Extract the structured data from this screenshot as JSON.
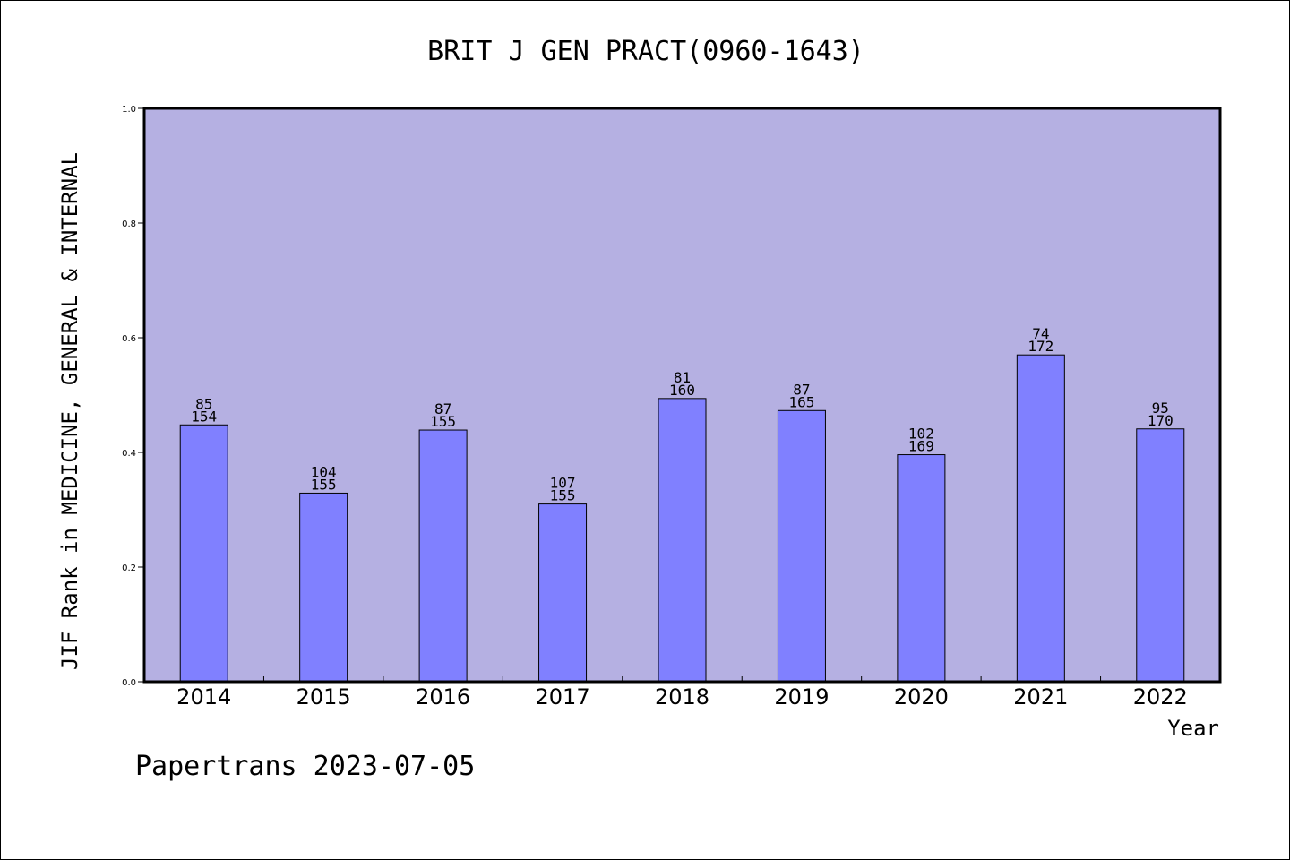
{
  "footer": {
    "credit": "Papertrans 2023-07-05"
  },
  "colors": {
    "plot_background": "#b5b0e2",
    "bar_fill": "#8080ff",
    "bar_stroke": "#000000"
  },
  "chart_data": {
    "type": "bar",
    "title": "BRIT J GEN PRACT(0960-1643)",
    "xlabel": "Year",
    "ylabel": "JIF Rank in MEDICINE, GENERAL & INTERNAL",
    "ylim": [
      0,
      1.0
    ],
    "yticks": [
      "0.0",
      "0.2",
      "0.4",
      "0.6",
      "0.8",
      "1.0"
    ],
    "grid": false,
    "legend": "none",
    "categories": [
      "2014",
      "2015",
      "2016",
      "2017",
      "2018",
      "2019",
      "2020",
      "2021",
      "2022"
    ],
    "values": [
      0.448,
      0.329,
      0.439,
      0.31,
      0.494,
      0.473,
      0.396,
      0.57,
      0.441
    ],
    "rank": [
      "85",
      "104",
      "87",
      "107",
      "81",
      "87",
      "102",
      "74",
      "95"
    ],
    "total": [
      "154",
      "155",
      "155",
      "155",
      "160",
      "165",
      "169",
      "172",
      "170"
    ]
  }
}
